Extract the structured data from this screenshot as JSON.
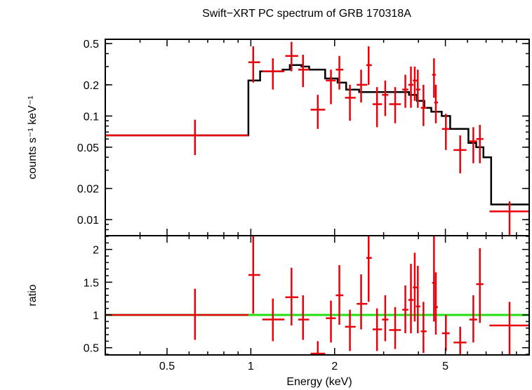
{
  "title": "Swift−XRT PC spectrum of GRB 170318A",
  "colors": {
    "data": "#e8000b",
    "model": "#000000",
    "unity": "#22dd11",
    "frame": "#000000"
  },
  "chart_data": [
    {
      "type": "scatter",
      "name": "spectrum",
      "xscale": "log",
      "yscale": "log",
      "xlim": [
        0.3,
        10
      ],
      "ylim": [
        0.007,
        0.55
      ],
      "ylabel": "counts s⁻¹ keV⁻¹",
      "yticks": [
        {
          "v": 0.5,
          "label": "0.5"
        },
        {
          "v": 0.2,
          "label": "0.2"
        },
        {
          "v": 0.1,
          "label": "0.1"
        },
        {
          "v": 0.05,
          "label": "0.05"
        },
        {
          "v": 0.02,
          "label": "0.02"
        },
        {
          "v": 0.01,
          "label": "0.01"
        }
      ],
      "points": [
        {
          "x": 0.63,
          "xlo": 0.3,
          "xhi": 0.98,
          "y": 0.065,
          "ylo": 0.042,
          "yhi": 0.092
        },
        {
          "x": 1.02,
          "xlo": 0.98,
          "xhi": 1.08,
          "y": 0.33,
          "ylo": 0.21,
          "yhi": 0.47
        },
        {
          "x": 1.2,
          "xlo": 1.1,
          "xhi": 1.32,
          "y": 0.27,
          "ylo": 0.18,
          "yhi": 0.36
        },
        {
          "x": 1.4,
          "xlo": 1.33,
          "xhi": 1.48,
          "y": 0.38,
          "ylo": 0.27,
          "yhi": 0.52
        },
        {
          "x": 1.54,
          "xlo": 1.48,
          "xhi": 1.62,
          "y": 0.28,
          "ylo": 0.19,
          "yhi": 0.39
        },
        {
          "x": 1.74,
          "xlo": 1.64,
          "xhi": 1.85,
          "y": 0.115,
          "ylo": 0.075,
          "yhi": 0.16
        },
        {
          "x": 1.94,
          "xlo": 1.86,
          "xhi": 2.02,
          "y": 0.22,
          "ylo": 0.13,
          "yhi": 0.28
        },
        {
          "x": 2.08,
          "xlo": 2.02,
          "xhi": 2.15,
          "y": 0.28,
          "ylo": 0.18,
          "yhi": 0.38
        },
        {
          "x": 2.27,
          "xlo": 2.18,
          "xhi": 2.38,
          "y": 0.15,
          "ylo": 0.09,
          "yhi": 0.2
        },
        {
          "x": 2.49,
          "xlo": 2.4,
          "xhi": 2.62,
          "y": 0.2,
          "ylo": 0.135,
          "yhi": 0.28
        },
        {
          "x": 2.65,
          "xlo": 2.6,
          "xhi": 2.72,
          "y": 0.31,
          "ylo": 0.2,
          "yhi": 0.47
        },
        {
          "x": 2.84,
          "xlo": 2.74,
          "xhi": 2.96,
          "y": 0.13,
          "ylo": 0.078,
          "yhi": 0.19
        },
        {
          "x": 3.04,
          "xlo": 2.96,
          "xhi": 3.12,
          "y": 0.16,
          "ylo": 0.1,
          "yhi": 0.22
        },
        {
          "x": 3.3,
          "xlo": 3.14,
          "xhi": 3.46,
          "y": 0.13,
          "ylo": 0.085,
          "yhi": 0.19
        },
        {
          "x": 3.59,
          "xlo": 3.5,
          "xhi": 3.68,
          "y": 0.18,
          "ylo": 0.12,
          "yhi": 0.25
        },
        {
          "x": 3.76,
          "xlo": 3.68,
          "xhi": 3.84,
          "y": 0.2,
          "ylo": 0.12,
          "yhi": 0.3
        },
        {
          "x": 3.88,
          "xlo": 3.82,
          "xhi": 3.96,
          "y": 0.22,
          "ylo": 0.14,
          "yhi": 0.3
        },
        {
          "x": 3.98,
          "xlo": 3.92,
          "xhi": 4.06,
          "y": 0.18,
          "ylo": 0.12,
          "yhi": 0.28
        },
        {
          "x": 4.17,
          "xlo": 4.08,
          "xhi": 4.28,
          "y": 0.12,
          "ylo": 0.08,
          "yhi": 0.2
        },
        {
          "x": 4.55,
          "xlo": 4.48,
          "xhi": 4.62,
          "y": 0.25,
          "ylo": 0.15,
          "yhi": 0.36
        },
        {
          "x": 4.62,
          "xlo": 4.56,
          "xhi": 4.7,
          "y": 0.135,
          "ylo": 0.085,
          "yhi": 0.2
        },
        {
          "x": 5.02,
          "xlo": 4.86,
          "xhi": 5.18,
          "y": 0.075,
          "ylo": 0.047,
          "yhi": 0.105
        },
        {
          "x": 5.65,
          "xlo": 5.35,
          "xhi": 5.95,
          "y": 0.047,
          "ylo": 0.028,
          "yhi": 0.065
        },
        {
          "x": 6.3,
          "xlo": 6.1,
          "xhi": 6.5,
          "y": 0.057,
          "ylo": 0.035,
          "yhi": 0.078
        },
        {
          "x": 6.65,
          "xlo": 6.45,
          "xhi": 6.85,
          "y": 0.06,
          "ylo": 0.035,
          "yhi": 0.082
        },
        {
          "x": 8.5,
          "xlo": 7.2,
          "xhi": 10.0,
          "y": 0.012,
          "ylo": 0.007,
          "yhi": 0.015
        }
      ],
      "model": [
        [
          0.3,
          0.065
        ],
        [
          0.98,
          0.065
        ],
        [
          0.98,
          0.22
        ],
        [
          1.08,
          0.22
        ],
        [
          1.08,
          0.27
        ],
        [
          1.3,
          0.27
        ],
        [
          1.3,
          0.28
        ],
        [
          1.38,
          0.28
        ],
        [
          1.38,
          0.31
        ],
        [
          1.52,
          0.31
        ],
        [
          1.52,
          0.3
        ],
        [
          1.62,
          0.3
        ],
        [
          1.62,
          0.28
        ],
        [
          1.85,
          0.28
        ],
        [
          1.85,
          0.23
        ],
        [
          2.05,
          0.23
        ],
        [
          2.05,
          0.21
        ],
        [
          2.2,
          0.21
        ],
        [
          2.2,
          0.18
        ],
        [
          2.45,
          0.18
        ],
        [
          2.45,
          0.17
        ],
        [
          3.7,
          0.17
        ],
        [
          3.7,
          0.16
        ],
        [
          3.95,
          0.16
        ],
        [
          3.95,
          0.14
        ],
        [
          4.2,
          0.14
        ],
        [
          4.2,
          0.12
        ],
        [
          4.45,
          0.12
        ],
        [
          4.45,
          0.11
        ],
        [
          4.85,
          0.11
        ],
        [
          4.85,
          0.1
        ],
        [
          5.2,
          0.1
        ],
        [
          5.2,
          0.075
        ],
        [
          6.05,
          0.075
        ],
        [
          6.05,
          0.055
        ],
        [
          6.45,
          0.055
        ],
        [
          6.45,
          0.05
        ],
        [
          6.85,
          0.05
        ],
        [
          6.85,
          0.04
        ],
        [
          7.3,
          0.04
        ],
        [
          7.3,
          0.014
        ],
        [
          10.0,
          0.014
        ]
      ]
    },
    {
      "type": "scatter",
      "name": "ratio",
      "xscale": "log",
      "xlim": [
        0.3,
        10
      ],
      "ylim": [
        0.39,
        2.21
      ],
      "xlabel": "Energy (keV)",
      "ylabel": "ratio",
      "unity": 1,
      "xticks": [
        {
          "v": 0.5,
          "label": "0.5"
        },
        {
          "v": 1,
          "label": "1"
        },
        {
          "v": 2,
          "label": "2"
        },
        {
          "v": 5,
          "label": "5"
        }
      ],
      "yticks": [
        {
          "v": 2,
          "label": "2"
        },
        {
          "v": 1.5,
          "label": "1.5"
        },
        {
          "v": 1,
          "label": "1"
        },
        {
          "v": 0.5,
          "label": "0.5"
        }
      ],
      "points": [
        {
          "x": 0.63,
          "xlo": 0.3,
          "xhi": 0.98,
          "y": 1.0,
          "ylo": 0.62,
          "yhi": 1.4
        },
        {
          "x": 1.02,
          "xlo": 0.98,
          "xhi": 1.08,
          "y": 1.61,
          "ylo": 1.02,
          "yhi": 2.21
        },
        {
          "x": 1.2,
          "xlo": 1.1,
          "xhi": 1.32,
          "y": 0.93,
          "ylo": 0.6,
          "yhi": 1.25
        },
        {
          "x": 1.4,
          "xlo": 1.33,
          "xhi": 1.48,
          "y": 1.27,
          "ylo": 0.84,
          "yhi": 1.72
        },
        {
          "x": 1.54,
          "xlo": 1.48,
          "xhi": 1.62,
          "y": 0.93,
          "ylo": 0.62,
          "yhi": 1.3
        },
        {
          "x": 1.74,
          "xlo": 1.64,
          "xhi": 1.85,
          "y": 0.41,
          "ylo": 0.39,
          "yhi": 0.6
        },
        {
          "x": 1.94,
          "xlo": 1.86,
          "xhi": 2.02,
          "y": 0.95,
          "ylo": 0.58,
          "yhi": 1.22
        },
        {
          "x": 2.08,
          "xlo": 2.02,
          "xhi": 2.15,
          "y": 1.3,
          "ylo": 0.85,
          "yhi": 1.76
        },
        {
          "x": 2.27,
          "xlo": 2.18,
          "xhi": 2.38,
          "y": 0.82,
          "ylo": 0.45,
          "yhi": 1.08
        },
        {
          "x": 2.49,
          "xlo": 2.4,
          "xhi": 2.62,
          "y": 1.17,
          "ylo": 0.78,
          "yhi": 1.62
        },
        {
          "x": 2.65,
          "xlo": 2.6,
          "xhi": 2.72,
          "y": 1.87,
          "ylo": 1.2,
          "yhi": 2.21
        },
        {
          "x": 2.84,
          "xlo": 2.74,
          "xhi": 2.96,
          "y": 0.78,
          "ylo": 0.45,
          "yhi": 1.1
        },
        {
          "x": 3.04,
          "xlo": 2.96,
          "xhi": 3.12,
          "y": 0.93,
          "ylo": 0.6,
          "yhi": 1.3
        },
        {
          "x": 3.3,
          "xlo": 3.14,
          "xhi": 3.46,
          "y": 0.77,
          "ylo": 0.48,
          "yhi": 1.12
        },
        {
          "x": 3.59,
          "xlo": 3.5,
          "xhi": 3.68,
          "y": 1.08,
          "ylo": 0.72,
          "yhi": 1.45
        },
        {
          "x": 3.76,
          "xlo": 3.68,
          "xhi": 3.84,
          "y": 1.23,
          "ylo": 0.72,
          "yhi": 1.78
        },
        {
          "x": 3.88,
          "xlo": 3.82,
          "xhi": 3.96,
          "y": 1.42,
          "ylo": 0.9,
          "yhi": 1.95
        },
        {
          "x": 3.98,
          "xlo": 3.92,
          "xhi": 4.06,
          "y": 1.13,
          "ylo": 0.72,
          "yhi": 1.75
        },
        {
          "x": 4.17,
          "xlo": 4.08,
          "xhi": 4.28,
          "y": 0.75,
          "ylo": 0.42,
          "yhi": 1.2
        },
        {
          "x": 4.55,
          "xlo": 4.48,
          "xhi": 4.62,
          "y": 1.49,
          "ylo": 0.9,
          "yhi": 2.21
        },
        {
          "x": 4.62,
          "xlo": 4.56,
          "xhi": 4.7,
          "y": 1.12,
          "ylo": 0.7,
          "yhi": 1.65
        },
        {
          "x": 5.02,
          "xlo": 4.86,
          "xhi": 5.18,
          "y": 0.72,
          "ylo": 0.45,
          "yhi": 1.0
        },
        {
          "x": 5.65,
          "xlo": 5.35,
          "xhi": 5.95,
          "y": 0.58,
          "ylo": 0.39,
          "yhi": 0.82
        },
        {
          "x": 6.3,
          "xlo": 6.1,
          "xhi": 6.5,
          "y": 0.93,
          "ylo": 0.58,
          "yhi": 1.3
        },
        {
          "x": 6.65,
          "xlo": 6.45,
          "xhi": 6.85,
          "y": 1.47,
          "ylo": 0.88,
          "yhi": 2.02
        },
        {
          "x": 8.5,
          "xlo": 7.2,
          "xhi": 10.0,
          "y": 0.84,
          "ylo": 0.39,
          "yhi": 1.2
        }
      ]
    }
  ]
}
